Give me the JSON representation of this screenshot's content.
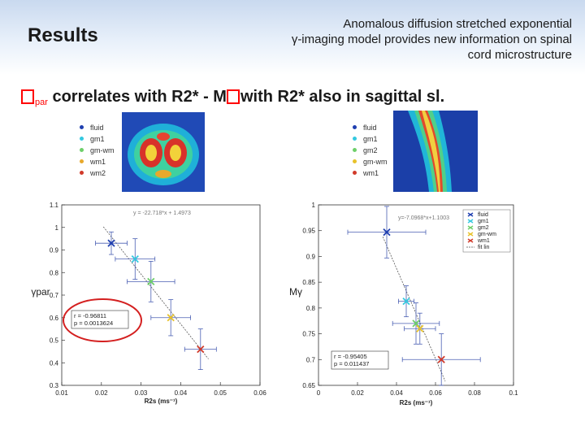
{
  "slide": {
    "title": "Results",
    "subtitle_lines": [
      "Anomalous diffusion stretched exponential",
      "γ-imaging model provides new information on spinal",
      "cord microstructure"
    ],
    "headline_sub": "par",
    "headline_text": " correlates with R2* - M",
    "headline_tail": "with R2* also in sagittal sl."
  },
  "legend_axial": {
    "items": [
      {
        "label": "fluid",
        "color": "#1f3fb0"
      },
      {
        "label": "gm1",
        "color": "#34c9e0"
      },
      {
        "label": "gm-wm",
        "color": "#6ecf6a"
      },
      {
        "label": "wm1",
        "color": "#e8a92b"
      },
      {
        "label": "wm2",
        "color": "#d13a2a"
      }
    ]
  },
  "legend_sagittal": {
    "items": [
      {
        "label": "fluid",
        "color": "#1f3fb0"
      },
      {
        "label": "gm1",
        "color": "#34c9e0"
      },
      {
        "label": "gm2",
        "color": "#6ecf6a"
      },
      {
        "label": "gm-wm",
        "color": "#e8c22b"
      },
      {
        "label": "wm1",
        "color": "#d13a2a"
      }
    ]
  },
  "chart_data": [
    {
      "type": "scatter",
      "xlabel": "R2s (ms⁻¹)",
      "ylabel": "γpar",
      "xlim": [
        0.01,
        0.06
      ],
      "ylim": [
        0.3,
        1.1
      ],
      "xticks": [
        "0.01",
        "0.02",
        "0.03",
        "0.04",
        "0.05",
        "0.06"
      ],
      "yticks": [
        "0.3",
        "0.4",
        "0.5",
        "0.6",
        "0.7",
        "0.8",
        "0.9",
        "1",
        "1.1"
      ],
      "fit_label": "y = -22.718*x + 1.4973",
      "stats": [
        "r = -0.96811",
        "p = 0.0013624"
      ],
      "points": [
        {
          "x": 0.0225,
          "y": 0.93,
          "xerr": 0.004,
          "yerr": 0.05,
          "color": "#1f3fb0"
        },
        {
          "x": 0.0285,
          "y": 0.86,
          "xerr": 0.005,
          "yerr": 0.09,
          "color": "#34c9e0"
        },
        {
          "x": 0.0325,
          "y": 0.76,
          "xerr": 0.006,
          "yerr": 0.09,
          "color": "#6ecf6a"
        },
        {
          "x": 0.0375,
          "y": 0.6,
          "xerr": 0.005,
          "yerr": 0.08,
          "color": "#e8c22b"
        },
        {
          "x": 0.045,
          "y": 0.46,
          "xerr": 0.004,
          "yerr": 0.09,
          "color": "#d13a2a"
        }
      ]
    },
    {
      "type": "scatter",
      "xlabel": "R2s (ms⁻¹)",
      "ylabel": "Mγ",
      "xlim": [
        0,
        0.1
      ],
      "ylim": [
        0.65,
        1
      ],
      "xticks": [
        "0",
        "0.02",
        "0.04",
        "0.06",
        "0.08",
        "0.1"
      ],
      "yticks": [
        "0.65",
        "0.7",
        "0.75",
        "0.8",
        "0.85",
        "0.9",
        "0.95",
        "1"
      ],
      "fit_label": "y=-7.0968*x+1.1003",
      "legend": [
        "fluid",
        "gm1",
        "gm2",
        "gm-wm",
        "wm1",
        "fit lin"
      ],
      "stats": [
        "r = -0.95405",
        "p = 0.011437"
      ],
      "points": [
        {
          "x": 0.035,
          "y": 0.947,
          "xerr": 0.02,
          "yerr": 0.05,
          "color": "#1f3fb0"
        },
        {
          "x": 0.045,
          "y": 0.813,
          "xerr": 0.004,
          "yerr": 0.03,
          "color": "#34c9e0"
        },
        {
          "x": 0.05,
          "y": 0.77,
          "xerr": 0.012,
          "yerr": 0.04,
          "color": "#6ecf6a"
        },
        {
          "x": 0.052,
          "y": 0.76,
          "xerr": 0.008,
          "yerr": 0.03,
          "color": "#e8c22b"
        },
        {
          "x": 0.063,
          "y": 0.7,
          "xerr": 0.02,
          "yerr": 0.05,
          "color": "#d13a2a"
        }
      ]
    }
  ]
}
